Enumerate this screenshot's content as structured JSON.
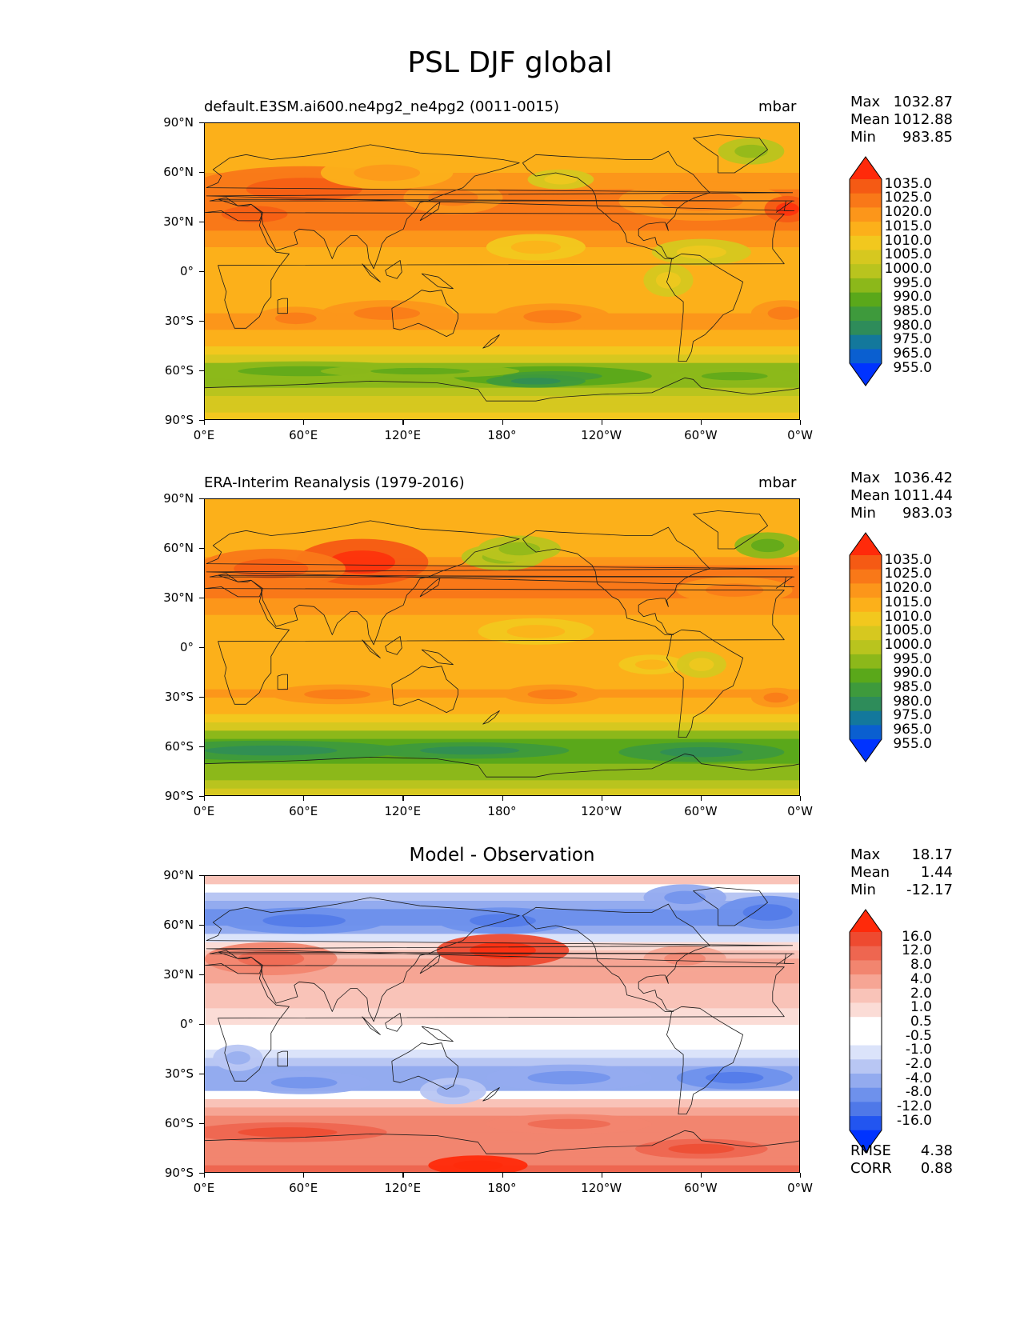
{
  "figure_title": "PSL DJF global",
  "lat_ticks": [
    "90°N",
    "60°N",
    "30°N",
    "0°",
    "30°S",
    "60°S",
    "90°S"
  ],
  "lon_ticks": [
    "0°E",
    "60°E",
    "120°E",
    "180°",
    "120°W",
    "60°W",
    "0°W"
  ],
  "abs_colors": [
    "#0033ff",
    "#0a5fd0",
    "#13789c",
    "#2e8c5a",
    "#3e9a3c",
    "#5aa81a",
    "#8cb81a",
    "#b9c41e",
    "#d6c81f",
    "#f2c81e",
    "#fcb01a",
    "#fc961a",
    "#f97818",
    "#f55a14",
    "#ff2a0a"
  ],
  "abs_levels": [
    "1035.0",
    "1025.0",
    "1020.0",
    "1015.0",
    "1010.0",
    "1005.0",
    "1000.0",
    "995.0",
    "990.0",
    "985.0",
    "980.0",
    "975.0",
    "965.0",
    "955.0"
  ],
  "diff_colors": [
    "#0033ff",
    "#2255f0",
    "#4f78e8",
    "#6e91ec",
    "#93abef",
    "#b8c6f3",
    "#dbe3fa",
    "#ffffff",
    "#ffffff",
    "#fbdcd6",
    "#f9c3b8",
    "#f6a594",
    "#f2856f",
    "#ee6650",
    "#ee4a30",
    "#ff2a0a"
  ],
  "diff_levels": [
    "16.0",
    "12.0",
    "8.0",
    "4.0",
    "2.0",
    "1.0",
    "0.5",
    "-0.5",
    "-1.0",
    "-2.0",
    "-4.0",
    "-8.0",
    "-12.0",
    "-16.0"
  ],
  "panels": [
    {
      "title": "default.E3SM.ai600.ne4pg2_ne4pg2 (0011-0015)",
      "units": "mbar",
      "stats": [
        {
          "label": "Max",
          "value": "1032.87"
        },
        {
          "label": "Mean",
          "value": "1012.88"
        },
        {
          "label": "Min",
          "value": "983.85"
        }
      ]
    },
    {
      "title": "ERA-Interim Reanalysis (1979-2016)",
      "units": "mbar",
      "stats": [
        {
          "label": "Max",
          "value": "1036.42"
        },
        {
          "label": "Mean",
          "value": "1011.44"
        },
        {
          "label": "Min",
          "value": "983.03"
        }
      ]
    },
    {
      "title": "Model - Observation",
      "units": "",
      "stats": [
        {
          "label": "Max",
          "value": "18.17"
        },
        {
          "label": "Mean",
          "value": "1.44"
        },
        {
          "label": "Min",
          "value": "-12.17"
        }
      ],
      "metrics": [
        {
          "label": "RMSE",
          "value": "4.38"
        },
        {
          "label": "CORR",
          "value": "0.88"
        }
      ]
    }
  ],
  "chart_data": [
    {
      "type": "heatmap",
      "title": "default.E3SM.ai600.ne4pg2_ne4pg2 (0011-0015)",
      "units": "mbar",
      "variable": "PSL",
      "season": "DJF",
      "x_range": [
        0,
        360
      ],
      "y_range": [
        -90,
        90
      ],
      "zonal_profile": {
        "lat": [
          90,
          75,
          60,
          45,
          35,
          20,
          0,
          -15,
          -30,
          -45,
          -55,
          -65,
          -75,
          -90
        ],
        "value": [
          1013,
          1011,
          1015,
          1022,
          1024,
          1016,
          1010,
          1012,
          1016,
          1011,
          997,
          988,
          1000,
          1008
        ]
      },
      "colorbar_levels": [
        955,
        965,
        975,
        980,
        985,
        990,
        995,
        1000,
        1005,
        1010,
        1015,
        1020,
        1025,
        1035
      ],
      "stats": {
        "max": 1032.87,
        "mean": 1012.88,
        "min": 983.85
      }
    },
    {
      "type": "heatmap",
      "title": "ERA-Interim Reanalysis (1979-2016)",
      "units": "mbar",
      "x_range": [
        0,
        360
      ],
      "y_range": [
        -90,
        90
      ],
      "zonal_profile": {
        "lat": [
          90,
          75,
          60,
          45,
          35,
          20,
          0,
          -15,
          -30,
          -45,
          -55,
          -65,
          -75,
          -90
        ],
        "value": [
          1011,
          1010,
          1013,
          1022,
          1021,
          1015,
          1010,
          1011,
          1016,
          1007,
          990,
          985,
          992,
          1002
        ]
      },
      "colorbar_levels": [
        955,
        965,
        975,
        980,
        985,
        990,
        995,
        1000,
        1005,
        1010,
        1015,
        1020,
        1025,
        1035
      ],
      "stats": {
        "max": 1036.42,
        "mean": 1011.44,
        "min": 983.03
      }
    },
    {
      "type": "heatmap",
      "title": "Model - Observation",
      "x_range": [
        0,
        360
      ],
      "y_range": [
        -90,
        90
      ],
      "zonal_profile": {
        "lat": [
          90,
          75,
          65,
          55,
          40,
          25,
          10,
          0,
          -15,
          -30,
          -40,
          -55,
          -70,
          -85
        ],
        "value": [
          4,
          -3,
          -6,
          -2,
          5,
          4,
          2,
          1,
          0,
          -4,
          -2,
          8,
          8,
          12
        ]
      },
      "colorbar_levels": [
        -16,
        -12,
        -8,
        -4,
        -2,
        -1,
        -0.5,
        0.5,
        1,
        2,
        4,
        8,
        12,
        16
      ],
      "stats": {
        "max": 18.17,
        "mean": 1.44,
        "min": -12.17,
        "rmse": 4.38,
        "corr": 0.88
      }
    }
  ]
}
